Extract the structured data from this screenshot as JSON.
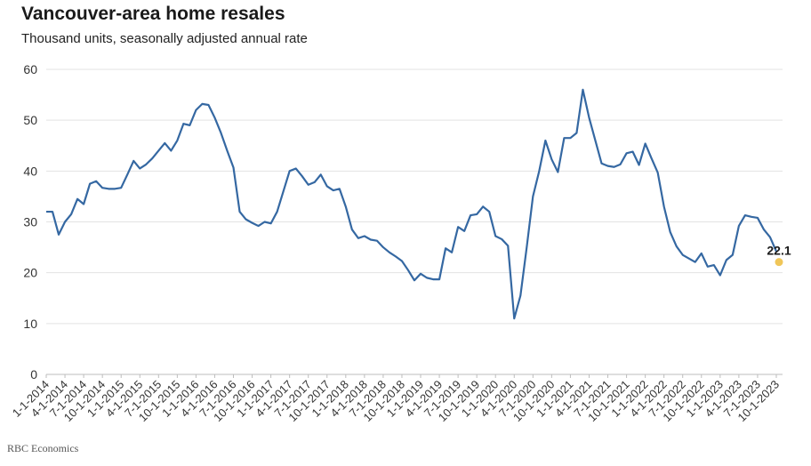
{
  "header": {
    "title": "Vancouver-area home resales",
    "subtitle": "Thousand units, seasonally adjusted annual rate"
  },
  "footer": {
    "source": "RBC Economics"
  },
  "colors": {
    "line": "#3568a2",
    "forecast_dot": "#f0c659",
    "grid": "#e3e3e3"
  },
  "chart_data": {
    "type": "line",
    "title": "Vancouver-area home resales",
    "subtitle": "Thousand units, seasonally adjusted annual rate",
    "xlabel": "",
    "ylabel": "",
    "ylim": [
      0,
      60
    ],
    "yticks": [
      0,
      10,
      20,
      30,
      40,
      50,
      60
    ],
    "grid": true,
    "x_start": "2014-01",
    "x_end": "2023-12",
    "xtick_labels": [
      "1-1-2014",
      "4-1-2014",
      "7-1-2014",
      "10-1-2014",
      "1-1-2015",
      "4-1-2015",
      "7-1-2015",
      "10-1-2015",
      "1-1-2016",
      "4-1-2016",
      "7-1-2016",
      "10-1-2016",
      "1-1-2017",
      "4-1-2017",
      "7-1-2017",
      "10-1-2017",
      "1-1-2018",
      "4-1-2018",
      "7-1-2018",
      "10-1-2018",
      "1-1-2019",
      "4-1-2019",
      "7-1-2019",
      "10-1-2019",
      "1-1-2020",
      "4-1-2020",
      "7-1-2020",
      "10-1-2020",
      "1-1-2021",
      "4-1-2021",
      "7-1-2021",
      "10-1-2021",
      "1-1-2022",
      "4-1-2022",
      "7-1-2022",
      "10-1-2022",
      "1-1-2023",
      "4-1-2023",
      "7-1-2023",
      "10-1-2023"
    ],
    "series": [
      {
        "values": [
          32.0,
          32.0,
          27.5,
          30.0,
          31.5,
          34.5,
          33.5,
          37.5,
          38.0,
          36.7,
          36.5,
          36.5,
          36.7,
          39.3,
          42.0,
          40.5,
          41.3,
          42.5,
          44.0,
          45.5,
          44.0,
          46.0,
          49.3,
          49.0,
          52.0,
          53.2,
          53.0,
          50.5,
          47.5,
          44.0,
          40.7,
          32.0,
          30.5,
          29.8,
          29.2,
          30.0,
          29.7,
          32.0,
          36.0,
          40.0,
          40.5,
          39.0,
          37.3,
          37.8,
          39.3,
          37.0,
          36.2,
          36.5,
          33.0,
          28.5,
          26.8,
          27.2,
          26.5,
          26.3,
          25.0,
          24.0,
          23.2,
          22.3,
          20.5,
          18.5,
          19.8,
          19.0,
          18.7,
          18.7,
          24.8,
          24.0,
          29.0,
          28.2,
          31.3,
          31.5,
          33.0,
          32.0,
          27.2,
          26.6,
          25.3,
          11.0,
          15.5,
          25.0,
          35.0,
          40.0,
          46.0,
          42.3,
          39.8,
          46.5,
          46.5,
          47.5,
          56.0,
          50.5,
          46.0,
          41.5,
          41.0,
          40.8,
          41.3,
          43.5,
          43.8,
          41.2,
          45.4,
          42.5,
          39.7,
          33.0,
          28.0,
          25.2,
          23.5,
          22.8,
          22.1,
          23.8,
          21.2,
          21.5,
          19.5,
          22.5,
          23.5,
          29.2,
          31.3,
          31.0,
          30.8,
          28.5,
          27.0,
          24.2
        ]
      }
    ],
    "forecast_point": {
      "x": "2023-12",
      "value": 22.1,
      "label": "22.1"
    }
  }
}
